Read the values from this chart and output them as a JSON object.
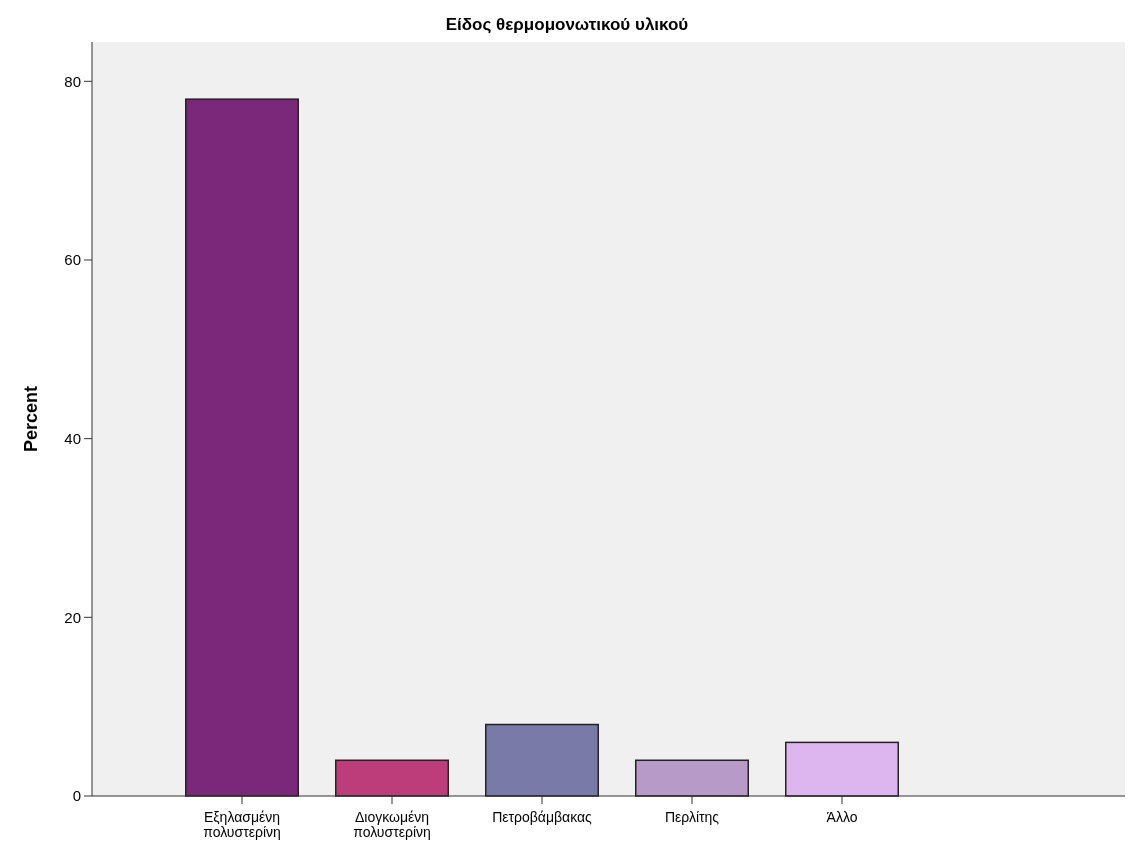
{
  "chart_data": {
    "type": "bar",
    "title": "Είδος θερμομονωτικού υλικού",
    "ylabel": "Percent",
    "categories": [
      "Εξηλασμένη πολυστερίνη",
      "Διογκωμένη πολυστερίνη",
      "Πετροβάμβακας",
      "Περλίτης",
      "Άλλο"
    ],
    "values": [
      78,
      4,
      8,
      4,
      6
    ],
    "colors": [
      "#7b287a",
      "#bc3d7a",
      "#7a7aa8",
      "#b89ac8",
      "#ddb6ef"
    ],
    "ylim": [
      0,
      84.4
    ],
    "yticks": [
      0,
      20,
      40,
      60,
      80
    ],
    "grid": false
  }
}
